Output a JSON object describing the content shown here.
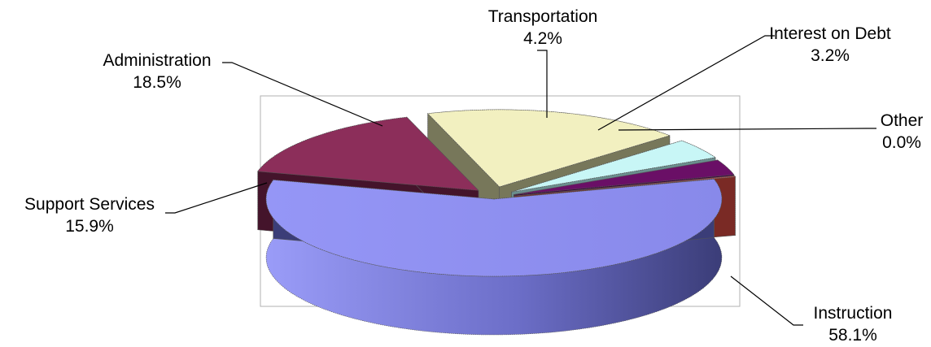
{
  "chart_data": {
    "type": "pie",
    "style": "3d-exploded",
    "slices": [
      {
        "label": "Instruction",
        "value": 58.1,
        "value_text": "58.1%",
        "color": "#8f90f0",
        "side_color": "#3b3d78"
      },
      {
        "label": "Support Services",
        "value": 15.9,
        "value_text": "15.9%",
        "color": "#8c2e5a",
        "side_color": "#44142b"
      },
      {
        "label": "Administration",
        "value": 18.5,
        "value_text": "18.5%",
        "color": "#f2f0c0",
        "side_color": "#77775a"
      },
      {
        "label": "Transportation",
        "value": 4.2,
        "value_text": "4.2%",
        "color": "#c8f6f6",
        "side_color": "#6a8e8e"
      },
      {
        "label": "Interest on Debt",
        "value": 3.2,
        "value_text": "3.2%",
        "color": "#6a0f66",
        "side_color": "#3a0638"
      },
      {
        "label": "Other",
        "value": 0.0,
        "value_text": "0.0%",
        "color": "#c4564f",
        "side_color": "#7a2a25"
      }
    ],
    "legend": "none",
    "plot_area_border": "#b0b0b0"
  }
}
